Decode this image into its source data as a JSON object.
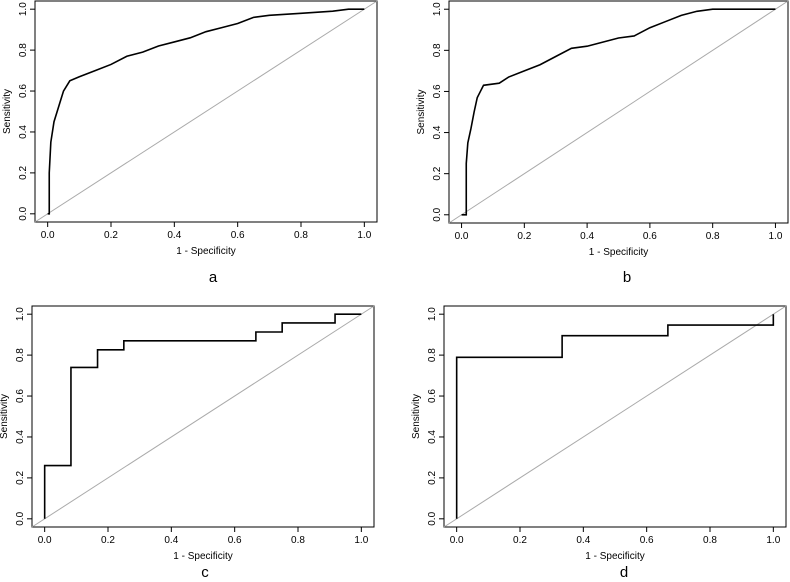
{
  "chart_data": [
    {
      "type": "line",
      "caption": "a",
      "xlabel": "1 - Specificity",
      "ylabel": "Sensitivity",
      "color": "#000000",
      "x": [
        0,
        0.005,
        0.005,
        0.01,
        0.02,
        0.03,
        0.04,
        0.05,
        0.07,
        0.1,
        0.15,
        0.2,
        0.25,
        0.3,
        0.35,
        0.4,
        0.45,
        0.5,
        0.55,
        0.6,
        0.65,
        0.7,
        0.8,
        0.9,
        0.95,
        1
      ],
      "values": [
        0,
        0,
        0.2,
        0.35,
        0.45,
        0.5,
        0.55,
        0.6,
        0.65,
        0.67,
        0.7,
        0.73,
        0.77,
        0.79,
        0.82,
        0.84,
        0.86,
        0.89,
        0.91,
        0.93,
        0.96,
        0.97,
        0.98,
        0.99,
        1,
        1
      ],
      "xlim": [
        -0.04,
        1.04
      ],
      "ylim": [
        -0.04,
        1.04
      ],
      "xticks": [
        {
          "value": 0,
          "label": "0.0"
        },
        0.2,
        0.4,
        0.6,
        0.8,
        {
          "value": 1,
          "label": "1.0"
        }
      ],
      "yticks": [
        {
          "value": 0,
          "label": "0.0"
        },
        0.2,
        0.4,
        0.6,
        0.8,
        {
          "value": 1,
          "label": "1.0"
        }
      ]
    },
    {
      "type": "line",
      "caption": "b",
      "xlabel": "1 - Specificity",
      "ylabel": "Sensitivity",
      "color": "#000000",
      "x": [
        0,
        0.015,
        0.015,
        0.02,
        0.03,
        0.04,
        0.05,
        0.06,
        0.07,
        0.12,
        0.15,
        0.2,
        0.25,
        0.3,
        0.35,
        0.4,
        0.45,
        0.5,
        0.55,
        0.6,
        0.65,
        0.7,
        0.75,
        0.8,
        1
      ],
      "values": [
        0,
        0,
        0.25,
        0.35,
        0.42,
        0.5,
        0.57,
        0.6,
        0.63,
        0.64,
        0.67,
        0.7,
        0.73,
        0.77,
        0.81,
        0.82,
        0.84,
        0.86,
        0.87,
        0.91,
        0.94,
        0.97,
        0.99,
        1,
        1
      ],
      "xlim": [
        -0.04,
        1.04
      ],
      "ylim": [
        -0.04,
        1.04
      ],
      "xticks": [
        {
          "value": 0,
          "label": "0.0"
        },
        0.2,
        0.4,
        0.6,
        0.8,
        {
          "value": 1,
          "label": "1.0"
        }
      ],
      "yticks": [
        {
          "value": 0,
          "label": "0.0"
        },
        0.2,
        0.4,
        0.6,
        0.8,
        {
          "value": 1,
          "label": "1.0"
        }
      ]
    },
    {
      "type": "line",
      "caption": "c",
      "xlabel": "1 - Specificity",
      "ylabel": "Sensitivity",
      "color": "#000000",
      "x": [
        0,
        0,
        0.083,
        0.083,
        0.167,
        0.167,
        0.25,
        0.25,
        0.667,
        0.667,
        0.75,
        0.75,
        0.917,
        0.917,
        1
      ],
      "values": [
        0,
        0.26,
        0.26,
        0.74,
        0.74,
        0.826,
        0.826,
        0.87,
        0.87,
        0.913,
        0.913,
        0.957,
        0.957,
        1,
        1
      ],
      "xlim": [
        -0.04,
        1.04
      ],
      "ylim": [
        -0.04,
        1.04
      ],
      "xticks": [
        {
          "value": 0,
          "label": "0.0"
        },
        0.2,
        0.4,
        0.6,
        0.8,
        {
          "value": 1,
          "label": "1.0"
        }
      ],
      "yticks": [
        {
          "value": 0,
          "label": "0.0"
        },
        0.2,
        0.4,
        0.6,
        0.8,
        {
          "value": 1,
          "label": "1.0"
        }
      ]
    },
    {
      "type": "line",
      "caption": "d",
      "xlabel": "1 - Specificity",
      "ylabel": "Sensitivity",
      "color": "#000000",
      "x": [
        0,
        0,
        0.333,
        0.333,
        0.667,
        0.667,
        1,
        1
      ],
      "values": [
        0,
        0.789,
        0.789,
        0.895,
        0.895,
        0.947,
        0.947,
        1
      ],
      "xlim": [
        -0.04,
        1.04
      ],
      "ylim": [
        -0.04,
        1.04
      ],
      "xticks": [
        {
          "value": 0,
          "label": "0.0"
        },
        0.2,
        0.4,
        0.6,
        0.8,
        {
          "value": 1,
          "label": "1.0"
        }
      ],
      "yticks": [
        {
          "value": 0,
          "label": "0.0"
        },
        0.2,
        0.4,
        0.6,
        0.8,
        {
          "value": 1,
          "label": "1.0"
        }
      ]
    }
  ]
}
